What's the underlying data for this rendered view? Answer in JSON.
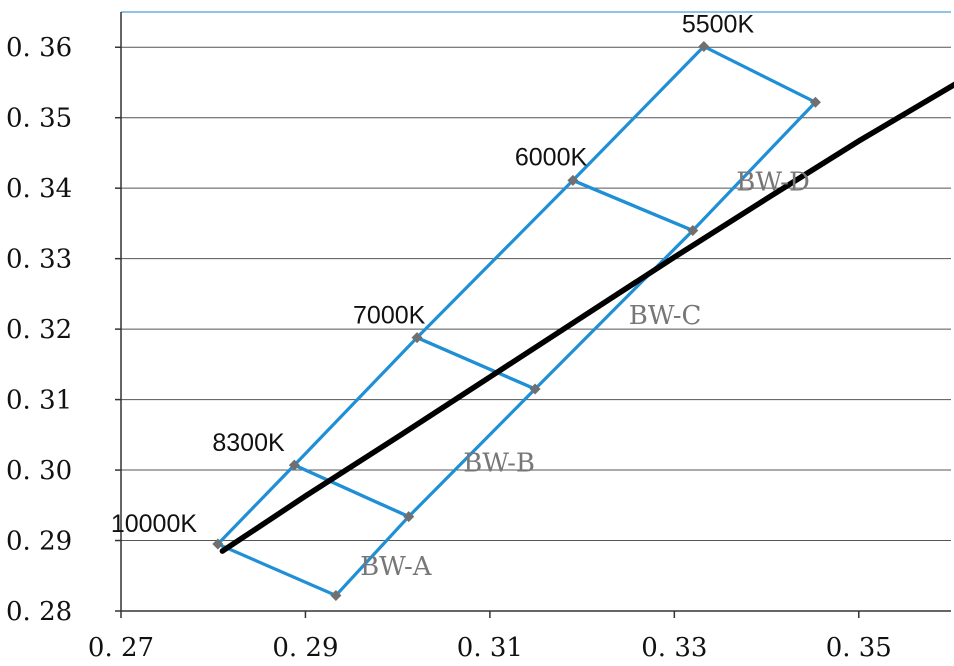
{
  "chart_data": {
    "type": "line",
    "xlim": [
      0.27,
      0.36
    ],
    "ylim": [
      0.28,
      0.365
    ],
    "x_ticks": [
      {
        "value": 0.27,
        "label": "0. 27"
      },
      {
        "value": 0.29,
        "label": "0. 29"
      },
      {
        "value": 0.31,
        "label": "0. 31"
      },
      {
        "value": 0.33,
        "label": "0. 33"
      },
      {
        "value": 0.35,
        "label": "0. 35"
      }
    ],
    "y_ticks": [
      {
        "value": 0.28,
        "label": "0. 28"
      },
      {
        "value": 0.29,
        "label": "0. 29"
      },
      {
        "value": 0.3,
        "label": "0. 30"
      },
      {
        "value": 0.31,
        "label": "0. 31"
      },
      {
        "value": 0.32,
        "label": "0. 32"
      },
      {
        "value": 0.33,
        "label": "0. 33"
      },
      {
        "value": 0.34,
        "label": "0. 34"
      },
      {
        "value": 0.35,
        "label": "0. 35"
      },
      {
        "value": 0.36,
        "label": "0. 36"
      }
    ],
    "grid": {
      "horizontal": true,
      "vertical": false
    },
    "colors": {
      "locus": "#000000",
      "bins": "#1f8fd6",
      "markers": "#707070",
      "grid": "#555555"
    },
    "locus": {
      "x": [
        0.281,
        0.29,
        0.3,
        0.31,
        0.32,
        0.33,
        0.34,
        0.35,
        0.3605
      ],
      "y": [
        0.2885,
        0.2963,
        0.3047,
        0.3132,
        0.3217,
        0.3302,
        0.3385,
        0.3467,
        0.3548
      ]
    },
    "cct_labels": [
      {
        "text": "10000K",
        "x": 0.2805,
        "y": 0.2895
      },
      {
        "text": "8300K",
        "x": 0.2888,
        "y": 0.3007
      },
      {
        "text": "7000K",
        "x": 0.3021,
        "y": 0.3188
      },
      {
        "text": "6000K",
        "x": 0.319,
        "y": 0.3411
      },
      {
        "text": "5500K",
        "x": 0.3332,
        "y": 0.3601
      }
    ],
    "bins": [
      {
        "name": "BW-A",
        "corners": [
          [
            0.2805,
            0.2895
          ],
          [
            0.2888,
            0.3007
          ],
          [
            0.3012,
            0.2934
          ],
          [
            0.2933,
            0.2822
          ]
        ]
      },
      {
        "name": "BW-B",
        "corners": [
          [
            0.2888,
            0.3007
          ],
          [
            0.3021,
            0.3188
          ],
          [
            0.3149,
            0.3115
          ],
          [
            0.3012,
            0.2934
          ]
        ]
      },
      {
        "name": "BW-C",
        "corners": [
          [
            0.3021,
            0.3188
          ],
          [
            0.319,
            0.3411
          ],
          [
            0.332,
            0.334
          ],
          [
            0.3149,
            0.3115
          ]
        ]
      },
      {
        "name": "BW-D",
        "corners": [
          [
            0.319,
            0.3411
          ],
          [
            0.3332,
            0.3601
          ],
          [
            0.3453,
            0.3522
          ],
          [
            0.332,
            0.334
          ]
        ]
      }
    ],
    "bin_labels": [
      {
        "text": "BW-A",
        "x": 0.2998,
        "y": 0.2851
      },
      {
        "text": "BW-B",
        "x": 0.311,
        "y": 0.2998
      },
      {
        "text": "BW-C",
        "x": 0.329,
        "y": 0.3207
      },
      {
        "text": "BW-D",
        "x": 0.3407,
        "y": 0.3397
      }
    ]
  }
}
